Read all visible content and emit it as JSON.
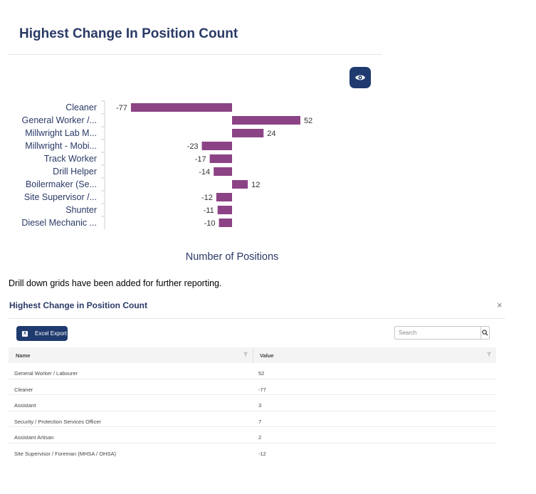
{
  "header": {
    "title": "Highest Change In Position Count"
  },
  "icons": {
    "visibility": "eye-icon",
    "close": "close-icon",
    "search": "search-icon",
    "excel": "excel-icon",
    "filter": "filter-icon"
  },
  "colors": {
    "bar": "#8c4385",
    "brand": "#1f3a6e",
    "title": "#2a3a67"
  },
  "chart_data": {
    "type": "bar",
    "orientation": "horizontal",
    "categories": [
      "Cleaner",
      "General Worker /...",
      "Millwright Lab M...",
      "Millwright - Mobi...",
      "Track Worker",
      "Drill Helper",
      "Boilermaker (Se...",
      "Site Supervisor /...",
      "Shunter",
      "Diesel Mechanic ..."
    ],
    "values": [
      -77,
      52,
      24,
      -23,
      -17,
      -14,
      12,
      -12,
      -11,
      -10
    ],
    "xlabel": "Number of Positions",
    "ylabel": "",
    "xlim": [
      -77,
      52
    ]
  },
  "note": "Drill down grids have been added for further reporting.",
  "grid": {
    "title": "Highest Change in Position Count",
    "close_label": "×",
    "excel_label": "Excel Export",
    "excel_icon_letter": "X",
    "search_placeholder": "Search",
    "columns": [
      "Name",
      "Value"
    ],
    "rows": [
      {
        "name": "General Worker / Labourer",
        "value": "52"
      },
      {
        "name": "Cleaner",
        "value": "-77"
      },
      {
        "name": "Assistant",
        "value": "3"
      },
      {
        "name": "Security / Protection Services Officer",
        "value": "7"
      },
      {
        "name": "Assistant Artisan",
        "value": "2"
      },
      {
        "name": "Site Supervisor / Foreman (MHSA / OHSA)",
        "value": "-12"
      }
    ]
  }
}
